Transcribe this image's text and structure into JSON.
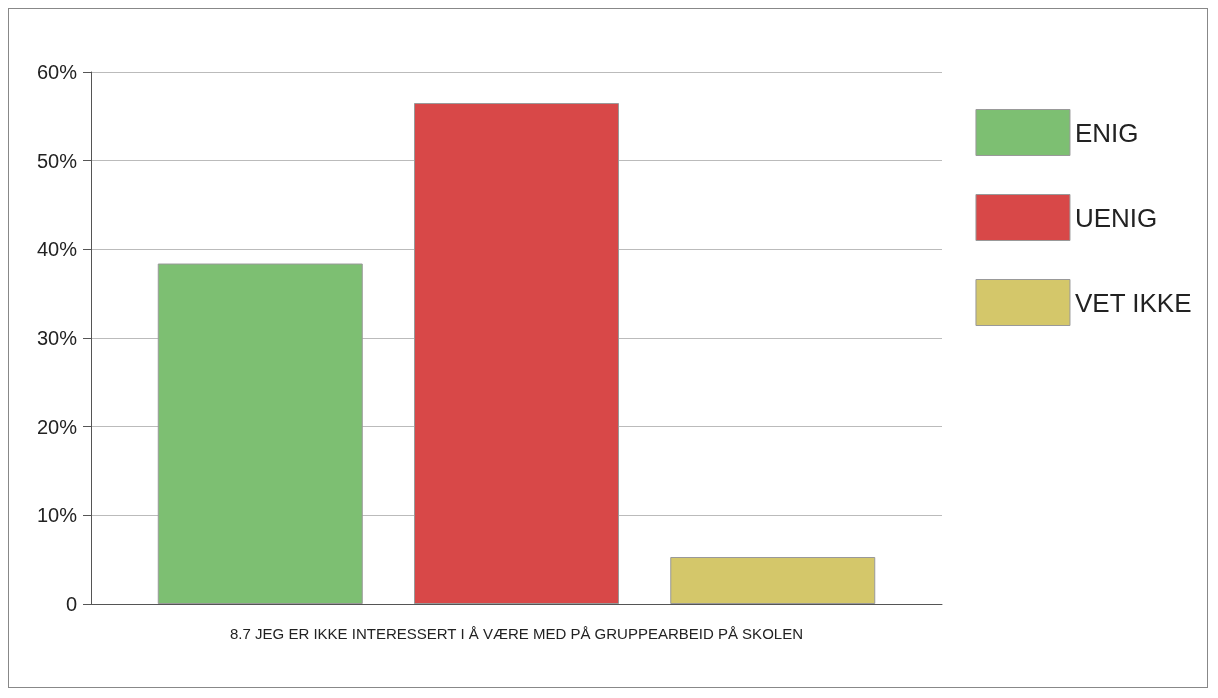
{
  "chart_data": {
    "type": "bar",
    "categories": [
      "8.7 JEG ER IKKE INTERESSERT I Å VÆRE MED PÅ GRUPPEARBEID PÅ SKOLEN"
    ],
    "series": [
      {
        "name": "ENIG",
        "color": "#7dbf72",
        "values": [
          38.4
        ]
      },
      {
        "name": "UENIG",
        "color": "#d84848",
        "values": [
          56.5
        ]
      },
      {
        "name": "VET IKKE",
        "color": "#d4c76a",
        "values": [
          5.3
        ]
      }
    ],
    "ylim": [
      0,
      60
    ],
    "yticks": [
      0,
      {
        "value": 10,
        "label": "10%"
      },
      {
        "value": 20,
        "label": "20%"
      },
      {
        "value": 30,
        "label": "30%"
      },
      {
        "value": 40,
        "label": "40%"
      },
      {
        "value": 50,
        "label": "50%"
      },
      {
        "value": 60,
        "label": "60%"
      }
    ],
    "grid": "y",
    "legend": "right"
  }
}
